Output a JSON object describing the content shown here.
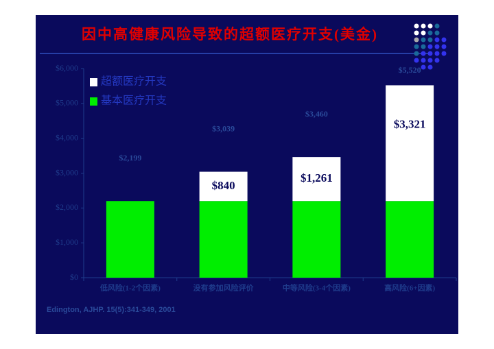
{
  "chart_data": {
    "type": "stacked-bar",
    "title": "因中高健康风险导致的超额医疗开支(美金)",
    "source": "Edington, AJHP. 15(5):341-349, 2001",
    "categories": [
      "低风险(1-2个因素)",
      "没有参加风险评价",
      "中等风险(3-4个因素)",
      "高风险(6+因素)"
    ],
    "series": [
      {
        "name": "基本医疗开支",
        "color": "#00ee00",
        "values": [
          2199,
          2199,
          2199,
          2199
        ]
      },
      {
        "name": "超额医疗开支",
        "color": "#ffffff",
        "values": [
          null,
          840,
          1261,
          3321
        ],
        "value_labels": [
          null,
          "$840",
          "$1,261",
          "$3,321"
        ]
      }
    ],
    "totals": {
      "values": [
        2199,
        3039,
        3460,
        5520
      ],
      "value_labels": [
        "$2,199",
        "$3,039",
        "$3,460",
        "$5,520"
      ]
    },
    "ylim": [
      0,
      6000
    ],
    "yticks": [
      {
        "value": 0,
        "label": "$0"
      },
      {
        "value": 1000,
        "label": "$1,000"
      },
      {
        "value": 2000,
        "label": "$2,000"
      },
      {
        "value": 3000,
        "label": "$3,000"
      },
      {
        "value": 4000,
        "label": "$4,000"
      },
      {
        "value": 5000,
        "label": "$5,000"
      },
      {
        "value": 6000,
        "label": "$6,000"
      }
    ],
    "legend": "top-left"
  }
}
